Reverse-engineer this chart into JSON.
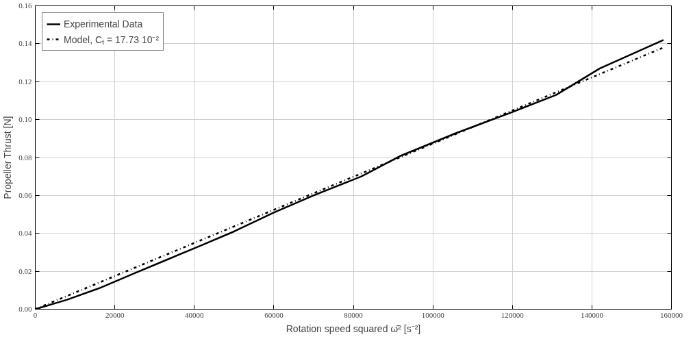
{
  "chart_data": {
    "type": "line",
    "xlabel": "Rotation speed squared ω̄² [s⁻²]",
    "ylabel": "Propeller Thrust [N]",
    "xlim": [
      0,
      160000
    ],
    "ylim": [
      0,
      0.16
    ],
    "xticks": [
      0,
      20000,
      40000,
      60000,
      80000,
      100000,
      120000,
      140000,
      160000
    ],
    "yticks": [
      {
        "value": 0,
        "label": "0.00"
      },
      {
        "value": 0.02,
        "label": "0.02"
      },
      {
        "value": 0.04,
        "label": "0.04"
      },
      {
        "value": 0.06,
        "label": "0.06"
      },
      {
        "value": 0.08,
        "label": "0.08"
      },
      {
        "value": 0.1,
        "label": "0.10"
      },
      {
        "value": 0.12,
        "label": "0.12"
      },
      {
        "value": 0.14,
        "label": "0.14"
      },
      {
        "value": 0.16,
        "label": "0.16"
      }
    ],
    "grid": true,
    "legend": "top left",
    "series": [
      {
        "name": "Experimental Data",
        "color": "#000000",
        "line_style": "solid",
        "x": [
          0,
          8000,
          16000,
          25000,
          33000,
          41000,
          50000,
          60000,
          70000,
          82000,
          92000,
          106000,
          120000,
          131000,
          142000,
          158000
        ],
        "values": [
          0,
          0.005,
          0.011,
          0.019,
          0.026,
          0.033,
          0.041,
          0.051,
          0.06,
          0.07,
          0.081,
          0.093,
          0.104,
          0.113,
          0.127,
          0.142
        ]
      },
      {
        "name": "Model, Cₜ = 17.73 10⁻²",
        "color": "#000000",
        "line_style": "dashdot",
        "x": [
          0,
          158000
        ],
        "values": [
          0,
          0.138
        ]
      }
    ]
  }
}
